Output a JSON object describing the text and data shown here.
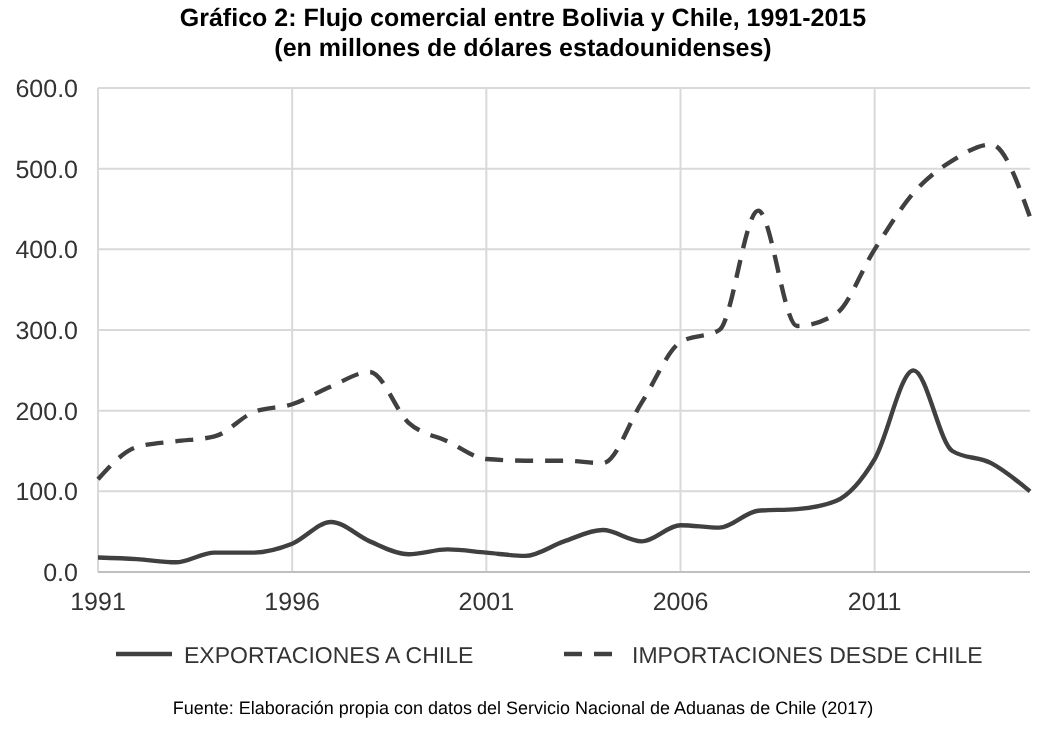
{
  "chart_data": {
    "type": "line",
    "title": "Gráfico 2: Flujo comercial entre Bolivia y Chile, 1991-2015 (en millones de dólares estadounidenses)",
    "x": [
      1991,
      1992,
      1993,
      1994,
      1995,
      1996,
      1997,
      1998,
      1999,
      2000,
      2001,
      2002,
      2003,
      2004,
      2005,
      2006,
      2007,
      2008,
      2009,
      2010,
      2011,
      2012,
      2013,
      2014,
      2015
    ],
    "series": [
      {
        "name": "EXPORTACIONES A CHILE",
        "color": "#404040",
        "line_style": "solid",
        "values": [
          18,
          16,
          12,
          24,
          24,
          35,
          62,
          38,
          22,
          28,
          24,
          20,
          38,
          52,
          38,
          58,
          55,
          76,
          78,
          88,
          140,
          250,
          150,
          135,
          100
        ]
      },
      {
        "name": "IMPORTACIONES DESDE CHILE",
        "color": "#404040",
        "line_style": "dashed",
        "values": [
          115,
          155,
          162,
          168,
          198,
          208,
          230,
          248,
          185,
          162,
          140,
          138,
          138,
          135,
          210,
          285,
          300,
          448,
          305,
          320,
          400,
          470,
          510,
          530,
          440
        ]
      }
    ],
    "xlim": [
      1991,
      2015
    ],
    "xticks": [
      1991,
      1996,
      2001,
      2006,
      2011
    ],
    "ylim": [
      0,
      600
    ],
    "yticks": [
      {
        "value": 0,
        "label": "0.0"
      },
      {
        "value": 100,
        "label": "100.0"
      },
      {
        "value": 200,
        "label": "200.0"
      },
      {
        "value": 300,
        "label": "300.0"
      },
      {
        "value": 400,
        "label": "400.0"
      },
      {
        "value": 500,
        "label": "500.0"
      },
      {
        "value": 600,
        "label": "600.0"
      }
    ],
    "grid": true,
    "legend": "bottom",
    "annotations": [
      "Fuente: Elaboración propia con datos del Servicio Nacional de Aduanas de Chile (2017)"
    ]
  }
}
